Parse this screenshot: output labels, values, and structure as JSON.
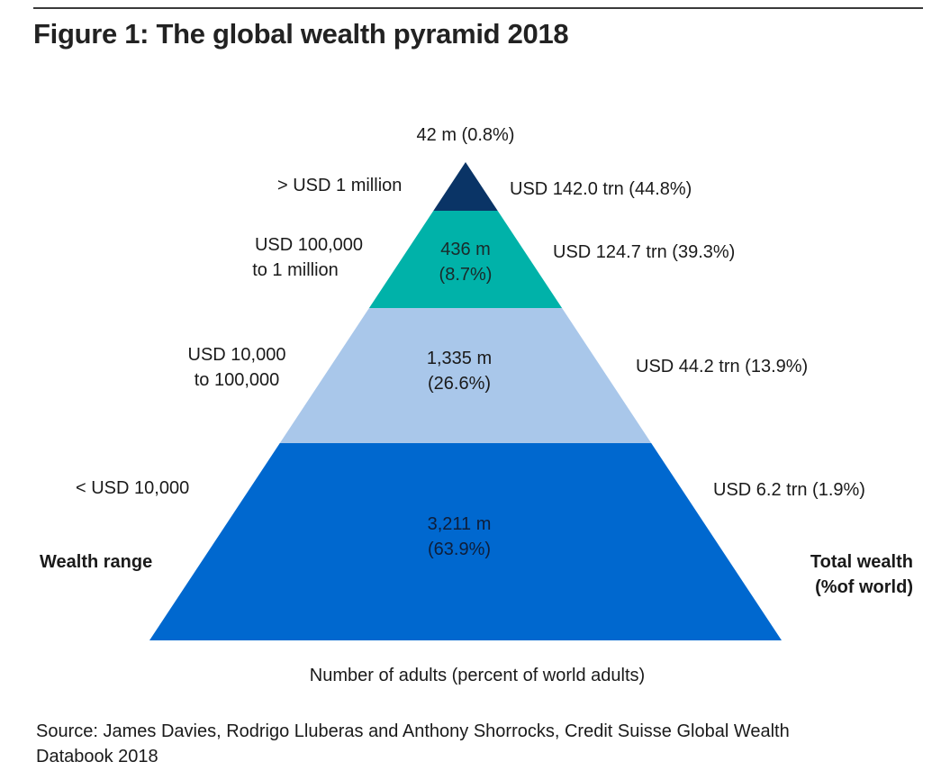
{
  "figure": {
    "title": "Figure 1: The global wealth pyramid 2018",
    "left_axis_label": "Wealth range",
    "right_axis_label_line1": "Total wealth",
    "right_axis_label_line2": "(%of world)",
    "bottom_label": "Number of adults (percent of world adults)",
    "source_line1": "Source: James Davies, Rodrigo Lluberas and Anthony Shorrocks, Credit Suisse Global Wealth",
    "source_line2": "Databook 2018"
  },
  "chart_data": {
    "type": "pyramid",
    "title": "Figure 1: The global wealth pyramid 2018",
    "xlabel": "Number of adults (percent of world adults)",
    "left_label": "Wealth range",
    "right_label": "Total wealth (%of world)",
    "tiers": [
      {
        "name": "top",
        "wealth_range_line1": "> USD 1 million",
        "wealth_range_line2": "",
        "adults_millions": 42,
        "adults_percent": 0.8,
        "adults_line1": "42 m (0.8%)",
        "adults_line2": "",
        "total_wealth_trn": 142.0,
        "total_wealth_percent": 44.8,
        "wealth_label": "USD 142.0 trn (44.8%)",
        "color": "#0a3466"
      },
      {
        "name": "upper",
        "wealth_range_line1": "USD 100,000",
        "wealth_range_line2": "to 1 million",
        "adults_millions": 436,
        "adults_percent": 8.7,
        "adults_line1": "436 m",
        "adults_line2": "(8.7%)",
        "total_wealth_trn": 124.7,
        "total_wealth_percent": 39.3,
        "wealth_label": "USD 124.7 trn (39.3%)",
        "color": "#00b2a9"
      },
      {
        "name": "middle",
        "wealth_range_line1": "USD 10,000",
        "wealth_range_line2": "to 100,000",
        "adults_millions": 1335,
        "adults_percent": 26.6,
        "adults_line1": "1,335 m",
        "adults_line2": "(26.6%)",
        "total_wealth_trn": 44.2,
        "total_wealth_percent": 13.9,
        "wealth_label": "USD 44.2 trn (13.9%)",
        "color": "#a9c7ea"
      },
      {
        "name": "base",
        "wealth_range_line1": "< USD 10,000",
        "wealth_range_line2": "",
        "adults_millions": 3211,
        "adults_percent": 63.9,
        "adults_line1": "3,211 m",
        "adults_line2": "(63.9%)",
        "total_wealth_trn": 6.2,
        "total_wealth_percent": 1.9,
        "wealth_label": "USD 6.2 trn (1.9%)",
        "color": "#0068cf"
      }
    ]
  }
}
